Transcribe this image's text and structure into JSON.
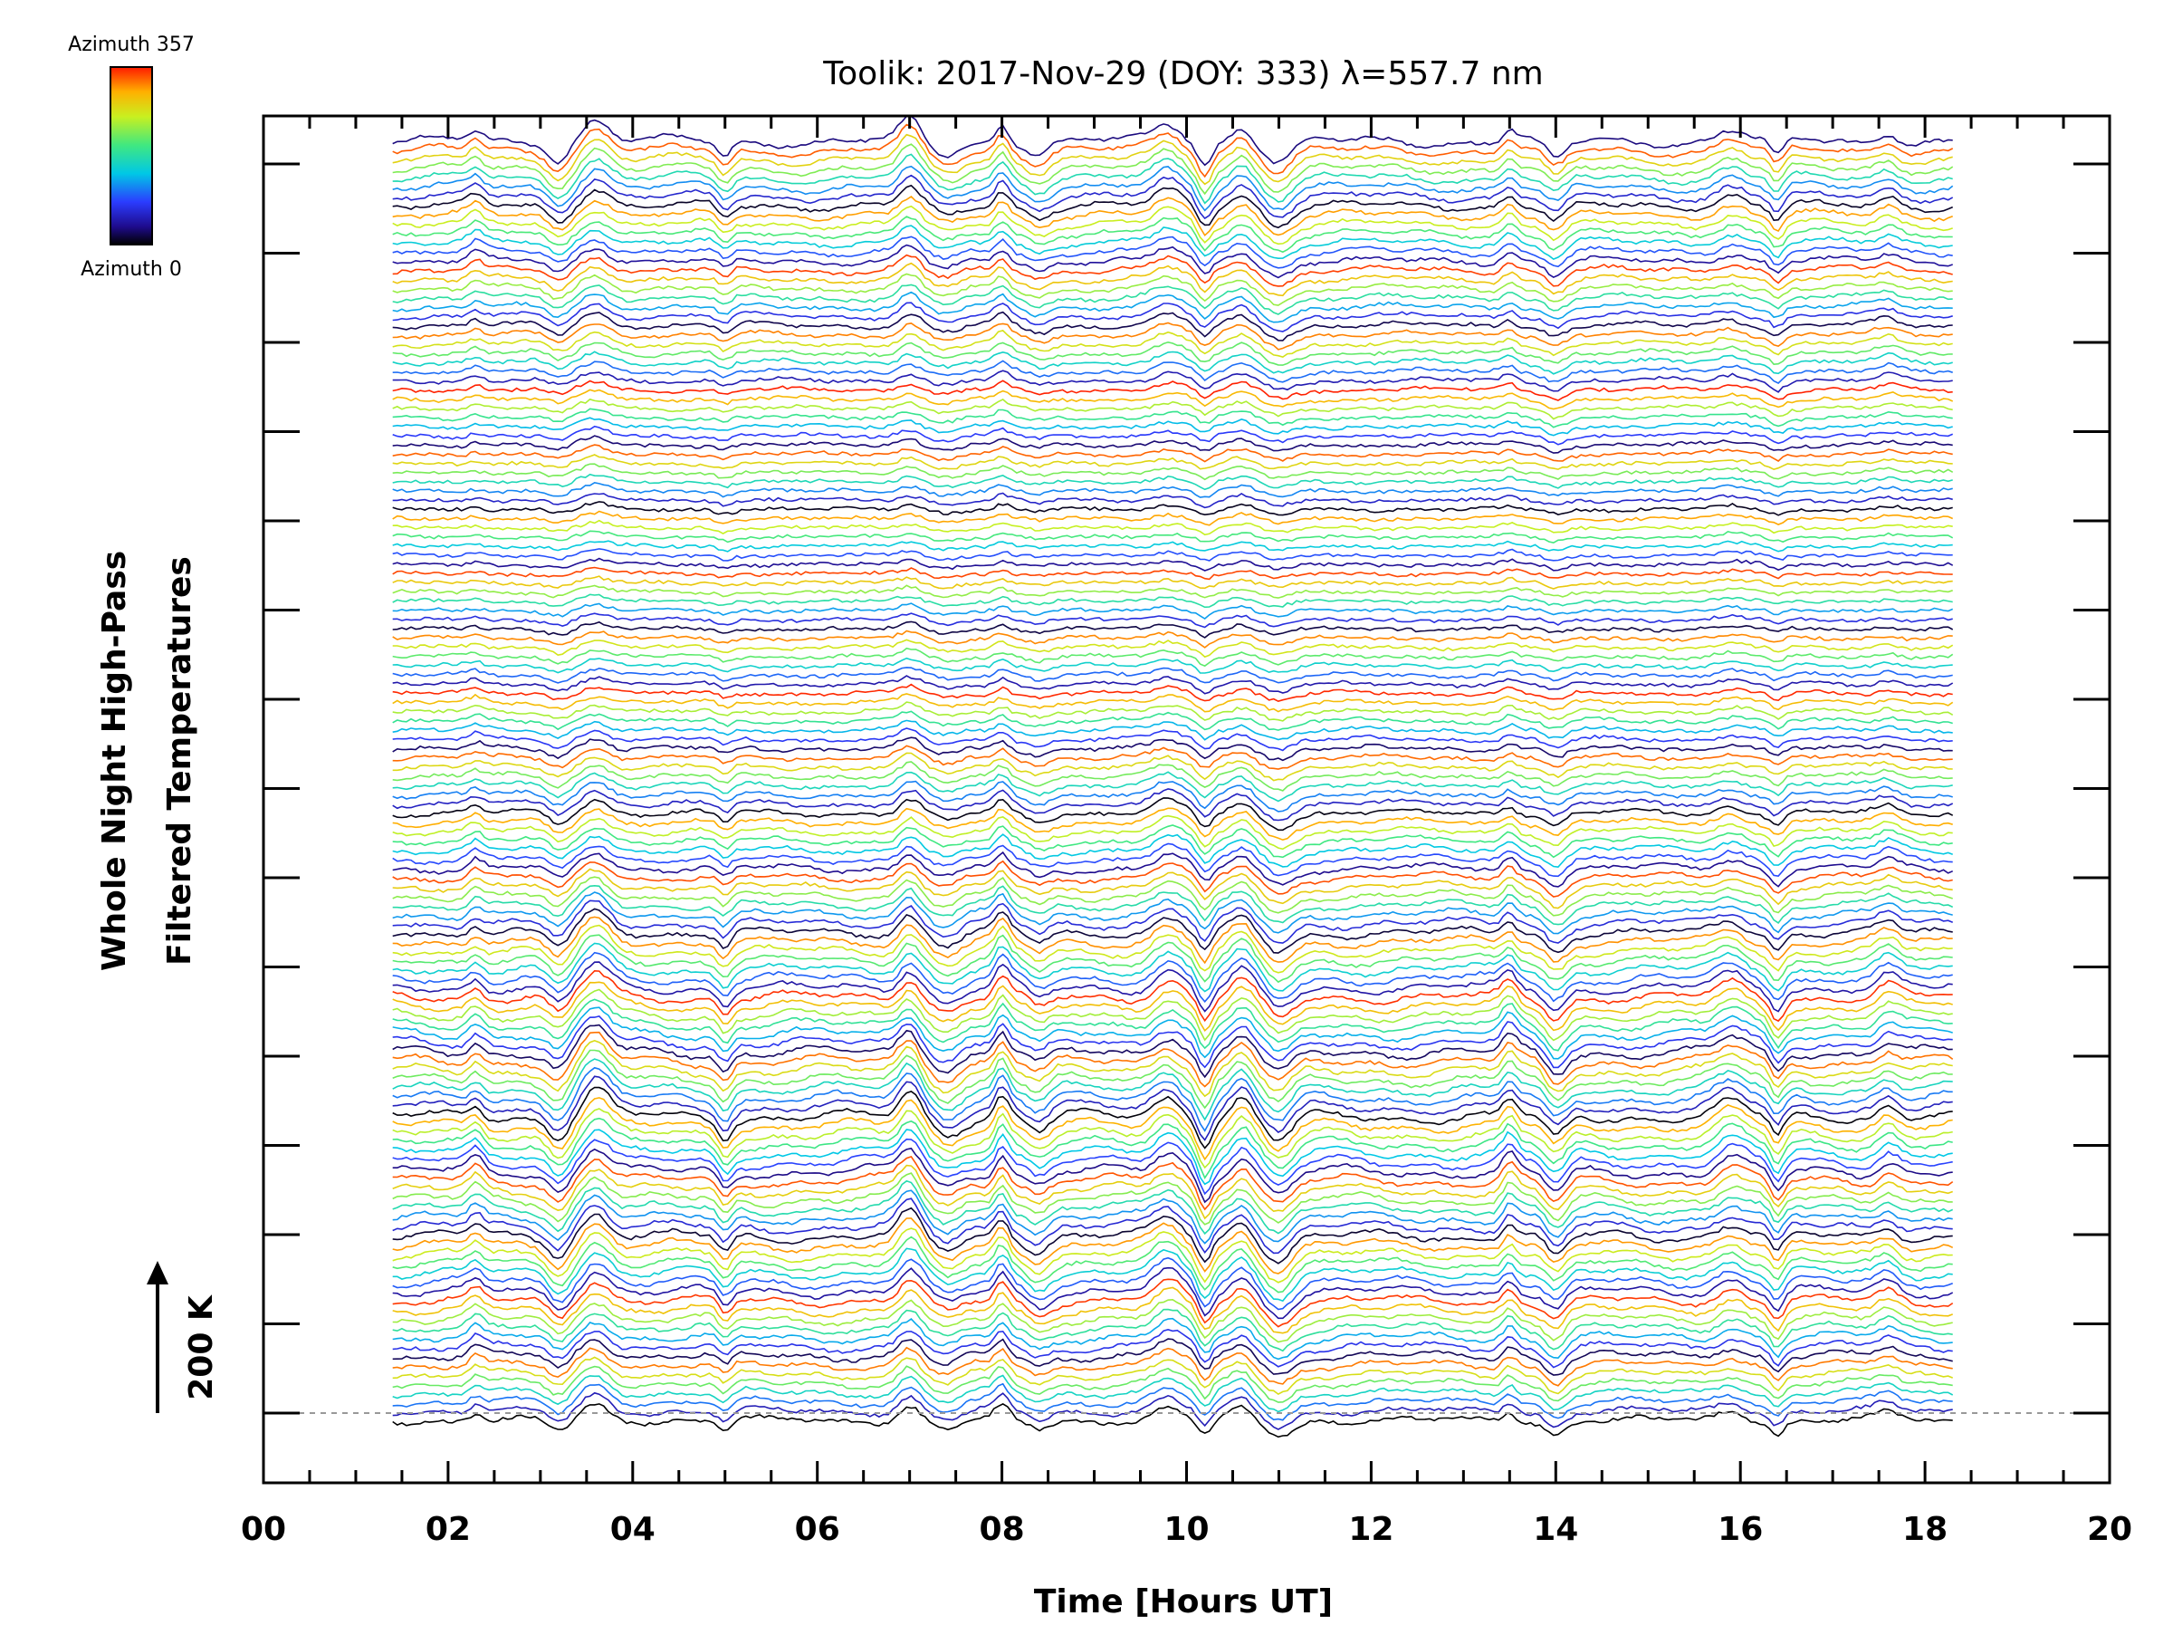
{
  "chart_data": {
    "type": "line",
    "title": "Toolik: 2017-Nov-29 (DOY: 333) λ=557.7 nm",
    "xlabel": "Time [Hours UT]",
    "ylabel_line1": "Whole Night High-Pass",
    "ylabel_line2": "Filtered Temperatures",
    "scale_label": "200 K",
    "scale_value_K": 200,
    "xlim": [
      0,
      20
    ],
    "x_ticks": [
      "00",
      "02",
      "04",
      "06",
      "08",
      "10",
      "12",
      "14",
      "16",
      "18",
      "20"
    ],
    "data_time_range": [
      1.4,
      18.3
    ],
    "trace_count": 140,
    "grid": false,
    "baseline_dashed": true,
    "colorbar": {
      "label_top": "Azimuth 357",
      "label_bottom": "Azimuth 0",
      "azimuth_range": [
        0,
        357
      ],
      "colormap": "rainbow"
    },
    "events_hours_UT": [
      2.3,
      3.2,
      3.6,
      5.0,
      7.0,
      7.4,
      8.0,
      8.4,
      9.8,
      10.2,
      10.6,
      11.0,
      13.5,
      14.0,
      15.9,
      16.4,
      17.6
    ]
  }
}
